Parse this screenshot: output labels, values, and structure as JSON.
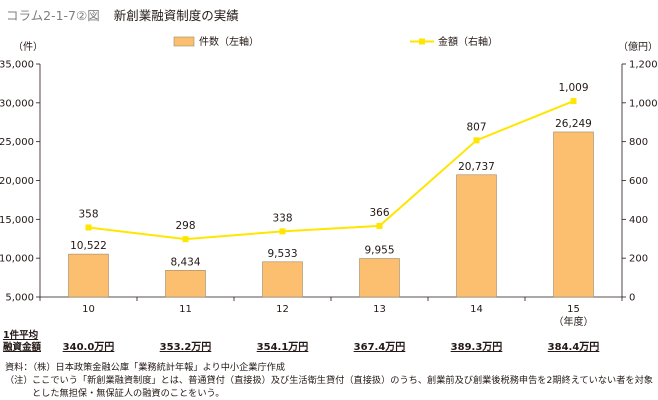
{
  "header": {
    "figure_label": "コラム2-1-7②図",
    "title": "新創業融資制度の実績"
  },
  "chart_data": {
    "type": "bar",
    "categories": [
      "10",
      "11",
      "12",
      "13",
      "14",
      "15"
    ],
    "x_unit_note": "（年度）",
    "series": [
      {
        "name": "件数（左軸）",
        "type": "bar",
        "axis": "left",
        "color": "#fbbf6f",
        "border": "#9c8a70",
        "values": [
          10522,
          8434,
          9533,
          9955,
          20737,
          26249
        ],
        "labels": [
          "10,522",
          "8,434",
          "9,533",
          "9,955",
          "20,737",
          "26,249"
        ]
      },
      {
        "name": "金額（右軸）",
        "type": "line",
        "axis": "right",
        "color": "#ffe600",
        "values": [
          358,
          298,
          338,
          366,
          807,
          1009
        ],
        "labels": [
          "358",
          "298",
          "338",
          "366",
          "807",
          "1,009"
        ]
      }
    ],
    "y_left": {
      "unit": "（件）",
      "range": [
        5000,
        35000
      ],
      "ticks": [
        5000,
        10000,
        15000,
        20000,
        25000,
        30000,
        35000
      ],
      "tick_labels": [
        "5,000",
        "10,000",
        "15,000",
        "20,000",
        "25,000",
        "30,000",
        "35,000"
      ]
    },
    "y_right": {
      "unit": "（億円）",
      "range": [
        0,
        1200
      ],
      "ticks": [
        0,
        200,
        400,
        600,
        800,
        1000,
        1200
      ],
      "tick_labels": [
        "0",
        "200",
        "400",
        "600",
        "800",
        "1,000",
        "1,200"
      ]
    },
    "legend_position": "top",
    "grid": false
  },
  "average": {
    "label_line1": "1件平均",
    "label_line2": "融資金額",
    "values": [
      "340.0万円",
      "353.2万円",
      "354.1万円",
      "367.4万円",
      "389.3万円",
      "384.4万円"
    ]
  },
  "footer": {
    "source": "資料：（株）日本政策金融公庫「業務統計年報」より中小企業庁作成",
    "note_prefix": "（注）",
    "note": "ここでいう「新創業融資制度」とは、普通貸付（直接扱）及び生活衛生貸付（直接扱）のうち、創業前及び創業後税務申告を2期終えていない者を対象とした無担保・無保証人の融資のことをいう。"
  }
}
